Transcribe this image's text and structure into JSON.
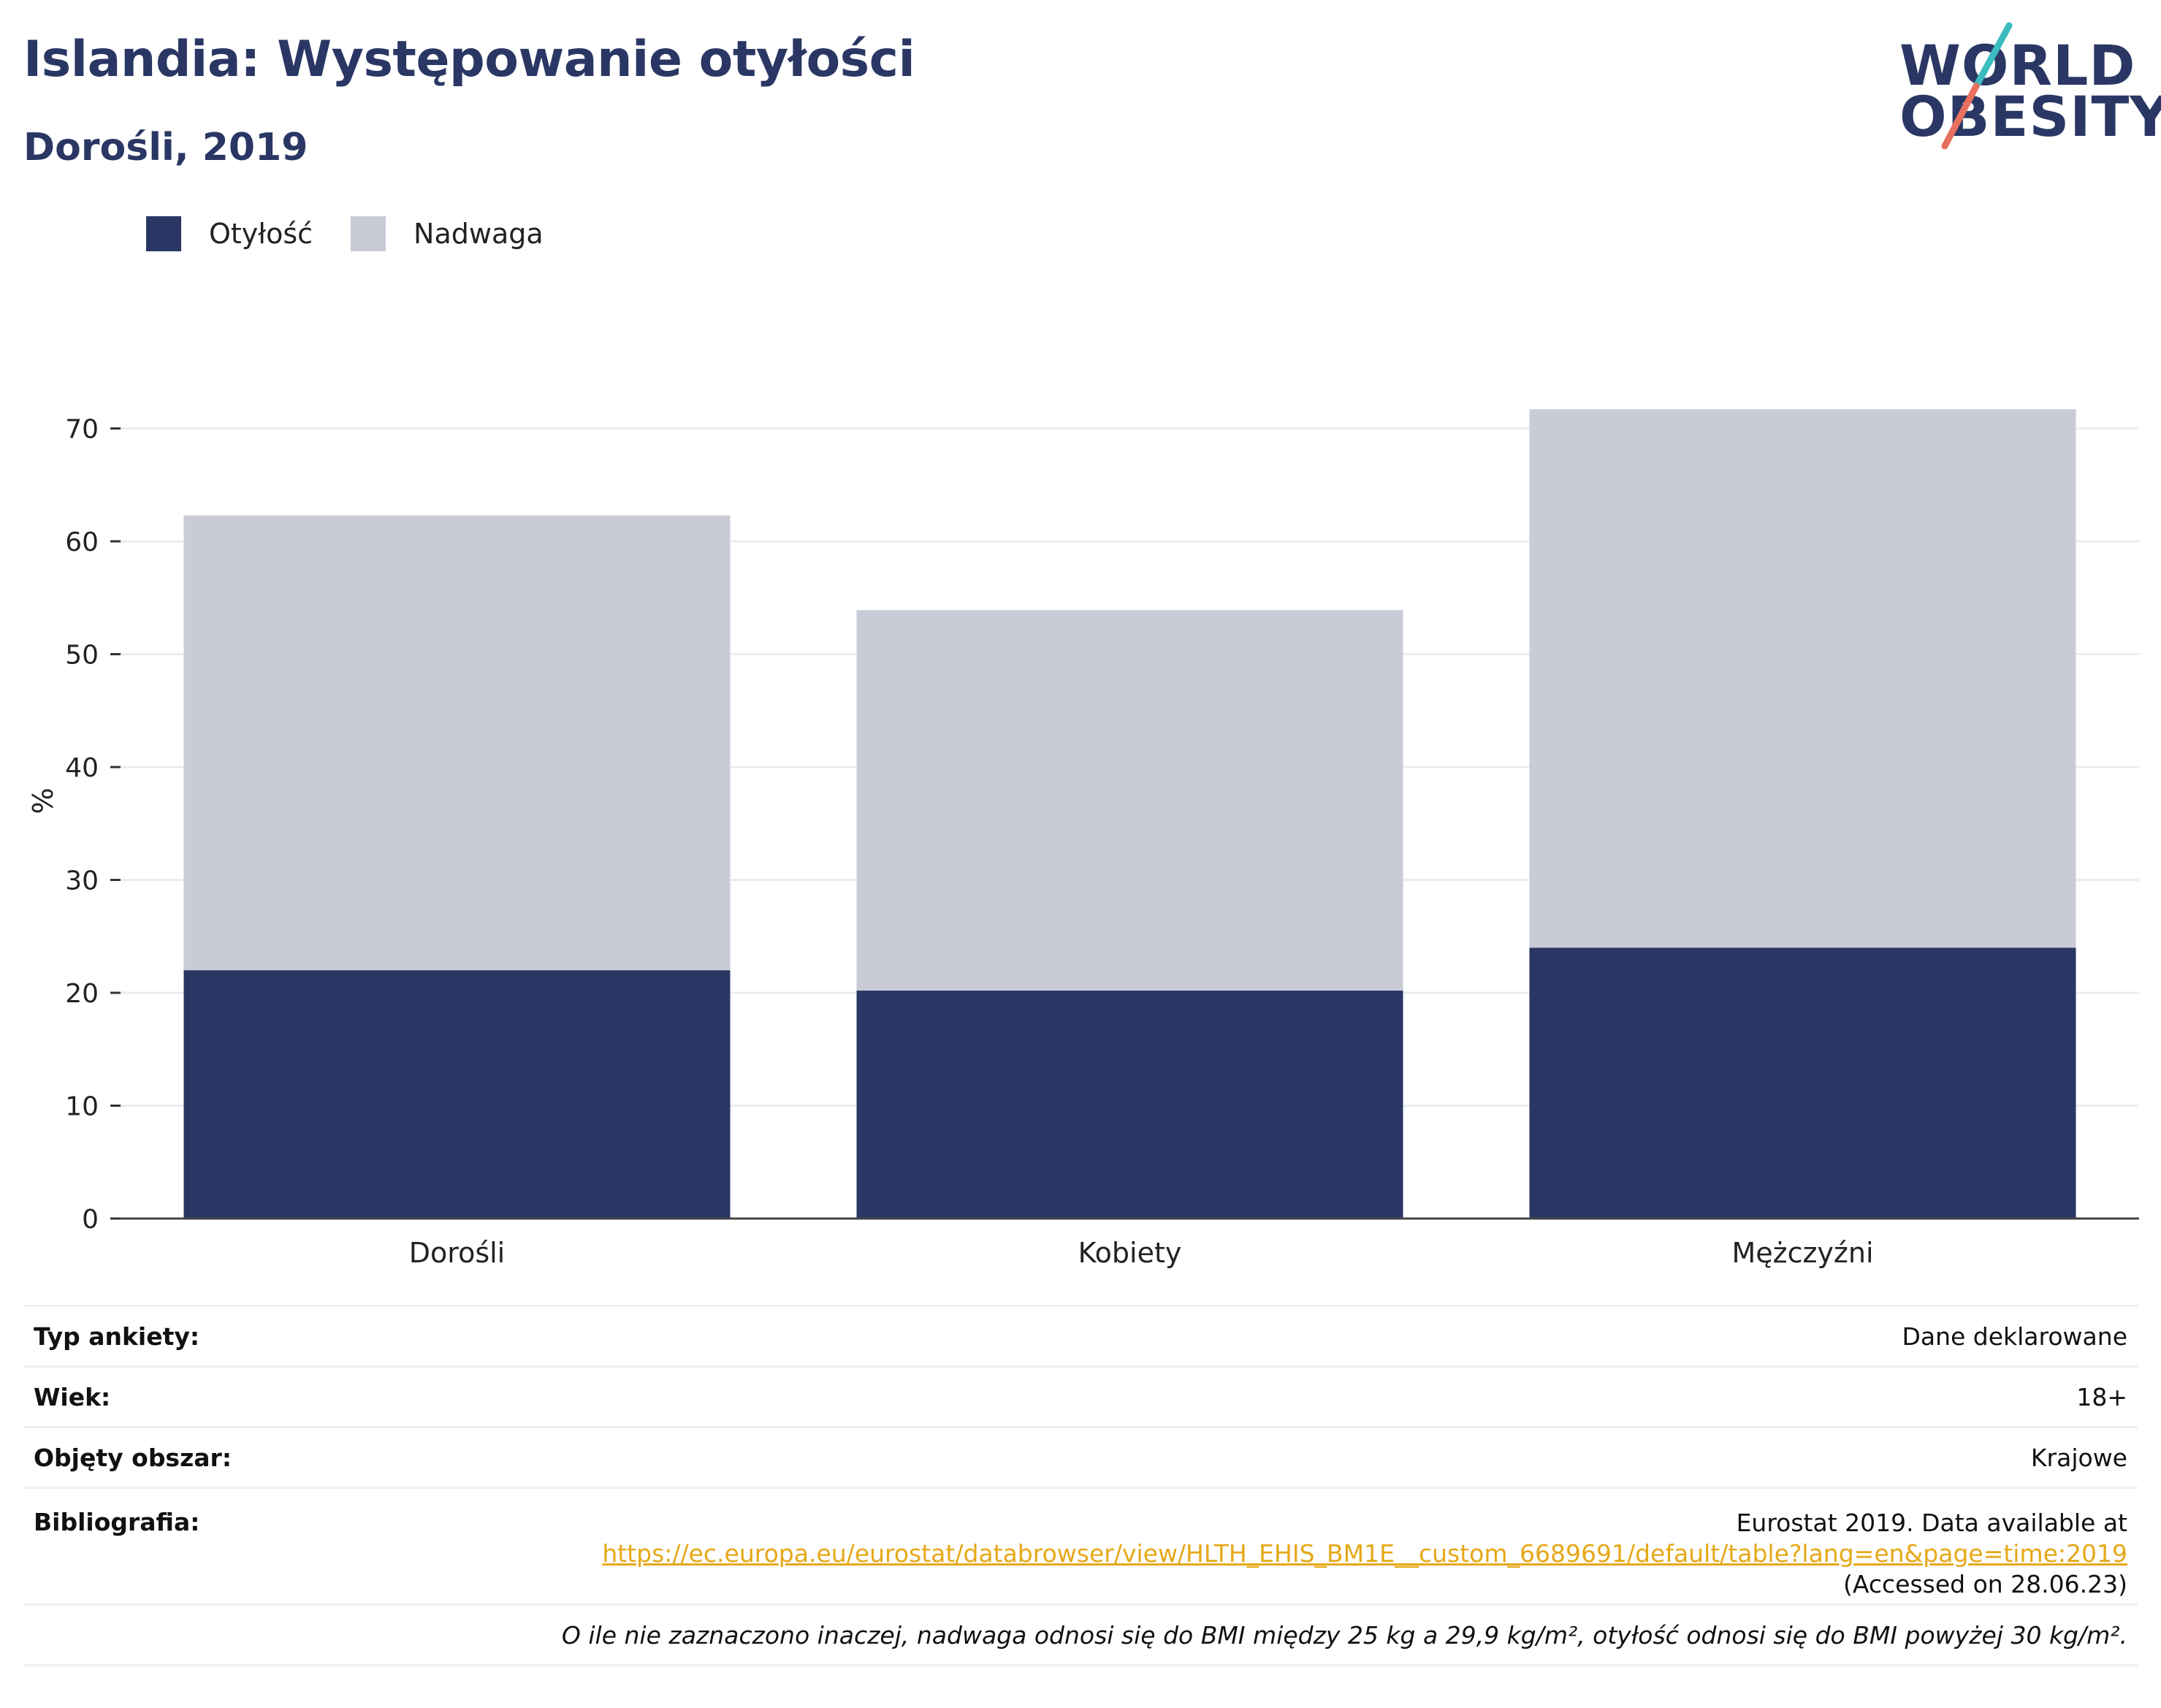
{
  "header": {
    "title": "Islandia: Występowanie otyłości",
    "subtitle": "Dorośli, 2019"
  },
  "logo": {
    "line1": "WORLD",
    "line2": "OBESITY"
  },
  "legend": [
    {
      "label": "Otyłość",
      "color": "#2a3764"
    },
    {
      "label": "Nadwaga",
      "color": "#c9cbd7"
    }
  ],
  "chart_data": {
    "type": "bar",
    "stacked": true,
    "categories": [
      "Dorośli",
      "Kobiety",
      "Mężczyźni"
    ],
    "series": [
      {
        "name": "Otyłość",
        "values": [
          22.0,
          20.2,
          24.0
        ],
        "color": "#2a3764"
      },
      {
        "name": "Nadwaga",
        "values": [
          40.3,
          33.7,
          47.7
        ],
        "color": "#c9cbd7"
      }
    ],
    "ylabel": "%",
    "ylim": [
      0,
      74
    ],
    "yticks": [
      0,
      10,
      20,
      30,
      40,
      50,
      60,
      70
    ],
    "grid": true
  },
  "info": {
    "survey_label": "Typ ankiety:",
    "survey_value": "Dane deklarowane",
    "age_label": "Wiek:",
    "age_value": "18+",
    "area_label": "Objęty obszar:",
    "area_value": "Krajowe",
    "bib_label": "Bibliografia:",
    "bib_line1": "Eurostat 2019. Data available at",
    "bib_link": "https://ec.europa.eu/eurostat/databrowser/view/HLTH_EHIS_BM1E__custom_6689691/default/table?lang=en&page=time:2019",
    "bib_line3": "(Accessed on 28.06.23)",
    "note": "O ile nie zaznaczono inaczej, nadwaga odnosi się do BMI między 25 kg a 29,9 kg/m², otyłość odnosi się do BMI powyżej 30 kg/m²."
  }
}
